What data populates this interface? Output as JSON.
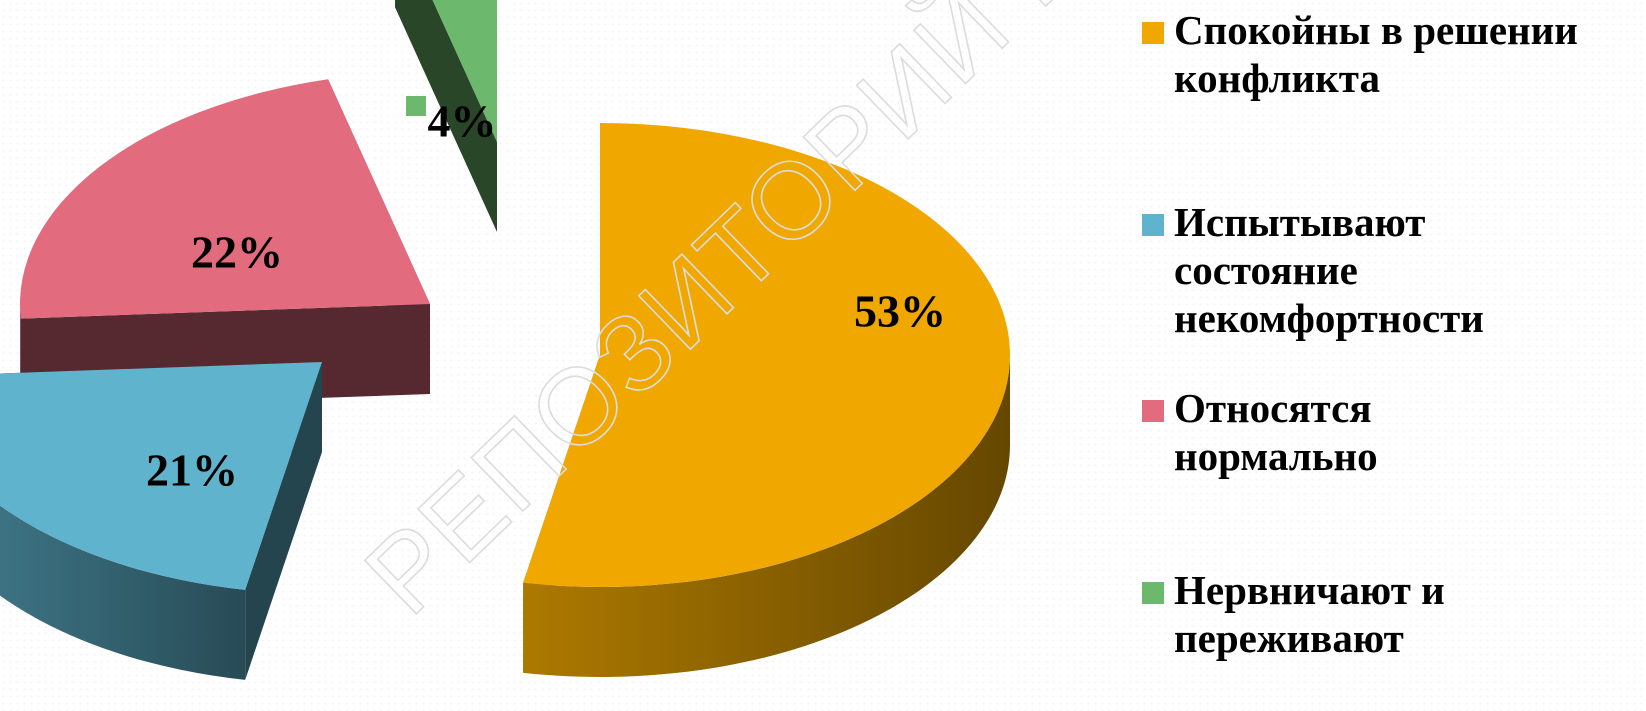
{
  "chart_data": {
    "type": "pie",
    "style": "3d-exploded",
    "categories": [
      "Спокойны в решении конфликта",
      "Испытывают состояние некомфортности",
      "Относятся нормально",
      "Нервничают и переживают"
    ],
    "values": [
      53,
      21,
      22,
      4
    ],
    "value_labels": [
      "53%",
      "21%",
      "22%",
      "4%"
    ],
    "colors": [
      "#F0A800",
      "#5FB3CC",
      "#E26B7E",
      "#6CB86C"
    ],
    "legend": [
      {
        "label": "Спокойны в решении конфликта",
        "color": "#F0A800"
      },
      {
        "label": "Испытывают состояние некомфортности",
        "color": "#5FB3CC"
      },
      {
        "label": "Относятся нормально",
        "color": "#E26B7E"
      },
      {
        "label": "Нервничают и переживают",
        "color": "#6CB86C"
      }
    ],
    "legend_position": "right"
  },
  "watermark": "РЕПОЗИТОРИЙ БГПУ"
}
